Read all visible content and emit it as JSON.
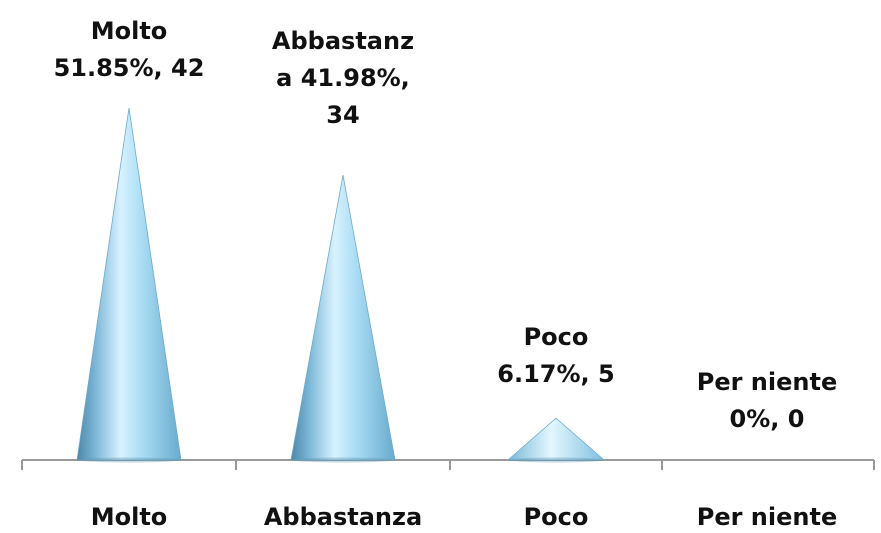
{
  "chart_data": {
    "type": "bar",
    "categories": [
      "Molto",
      "Abbastanza",
      "Poco",
      "Per niente"
    ],
    "series": [
      {
        "values": [
          42,
          34,
          5,
          0
        ],
        "percentages": [
          51.85,
          41.98,
          6.17,
          0
        ]
      }
    ],
    "data_labels": [
      [
        "Molto",
        "51.85%, 42"
      ],
      [
        "Abbastanz",
        "a 41.98%,",
        "34"
      ],
      [
        "Poco",
        "6.17%, 5"
      ],
      [
        "Per niente",
        "0%, 0"
      ]
    ],
    "bar_shape": "cone",
    "ylim": [
      0,
      42
    ],
    "grid": false,
    "legend": "none",
    "colors": {
      "cone_dark": "#5f9dbf",
      "cone_mid": "#a9d8ef",
      "cone_light": "#eef9ff",
      "axis": "#9a9a9a",
      "text": "#111111"
    }
  }
}
